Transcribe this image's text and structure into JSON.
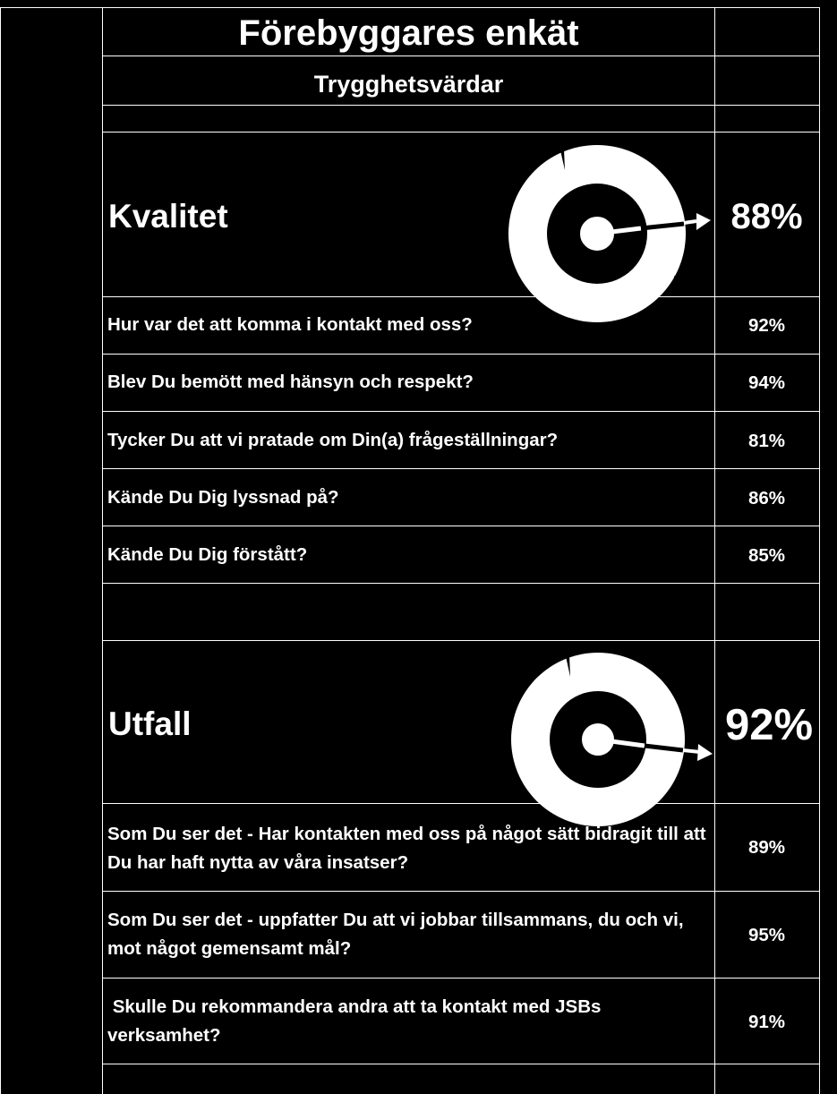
{
  "header": {
    "title": "Förebyggares enkät",
    "subtitle": "Trygghetsvärdar"
  },
  "sections": [
    {
      "label": "Kvalitet",
      "percent": "88%",
      "gauge_icon": "donut-gauge-icon",
      "questions": [
        {
          "text": "Hur var det att komma i kontakt med oss?",
          "percent": "92%"
        },
        {
          "text": "Blev Du bemött med hänsyn och respekt?",
          "percent": "94%"
        },
        {
          "text": "Tycker Du att vi pratade om Din(a) frågeställningar?",
          "percent": "81%"
        },
        {
          "text": "Kände Du Dig lyssnad på?",
          "percent": "86%"
        },
        {
          "text": "Kände Du Dig förstått?",
          "percent": "85%"
        }
      ]
    },
    {
      "label": "Utfall",
      "percent": "92%",
      "gauge_icon": "donut-gauge-icon",
      "questions": [
        {
          "text": "Som Du ser det - Har kontakten med oss på något sätt bidragit till att Du har haft nytta av våra insatser?",
          "percent": "89%"
        },
        {
          "text": "Som Du ser det - uppfatter Du att vi jobbar tillsammans, du och vi, mot något gemensamt mål?",
          "percent": "95%"
        },
        {
          "text": " Skulle Du rekommandera andra att ta kontakt med JSBs verksamhet?",
          "percent": "91%"
        }
      ]
    }
  ],
  "colors": {
    "background": "#000000",
    "foreground": "#ffffff"
  }
}
